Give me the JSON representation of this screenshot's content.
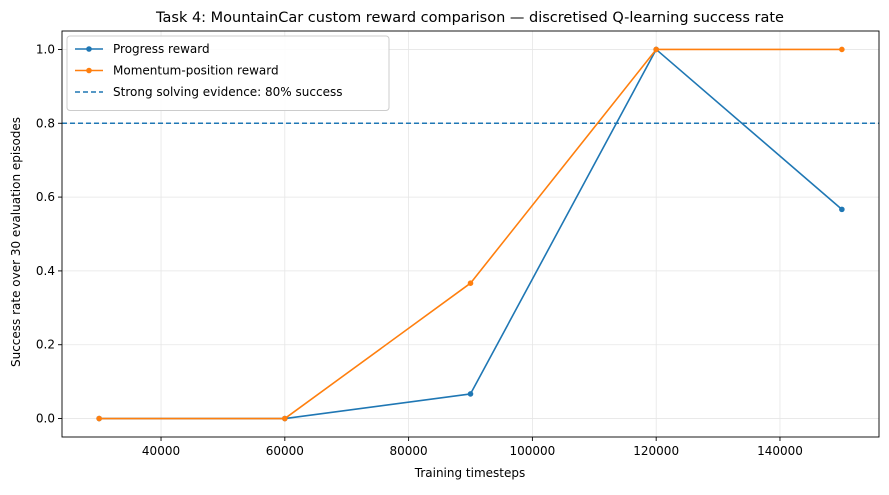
{
  "chart_data": {
    "type": "line",
    "title": "Task 4: MountainCar custom reward comparison — discretised Q-learning success rate",
    "xlabel": "Training timesteps",
    "ylabel": "Success rate over 30 evaluation episodes",
    "xlim": [
      24000,
      156000
    ],
    "ylim": [
      -0.05,
      1.05
    ],
    "x_ticks": [
      40000,
      60000,
      80000,
      100000,
      120000,
      140000
    ],
    "x_tick_labels": [
      "40000",
      "60000",
      "80000",
      "100000",
      "120000",
      "140000"
    ],
    "y_ticks": [
      0.0,
      0.2,
      0.4,
      0.6,
      0.8,
      1.0
    ],
    "y_tick_labels": [
      "0.0",
      "0.2",
      "0.4",
      "0.6",
      "0.8",
      "1.0"
    ],
    "grid": true,
    "legend_position": "top-left",
    "x": [
      30000,
      60000,
      90000,
      120000,
      150000
    ],
    "series": [
      {
        "name": "Progress reward",
        "color": "#1f77b4",
        "values": [
          0.0,
          0.0,
          0.0667,
          1.0,
          0.5667
        ]
      },
      {
        "name": "Momentum-position reward",
        "color": "#ff7f0e",
        "values": [
          0.0,
          0.0,
          0.3667,
          1.0,
          1.0
        ]
      }
    ],
    "reference_line": {
      "name": "Strong solving evidence: 80% success",
      "y": 0.8,
      "color": "#1f77b4",
      "style": "dashed"
    }
  }
}
